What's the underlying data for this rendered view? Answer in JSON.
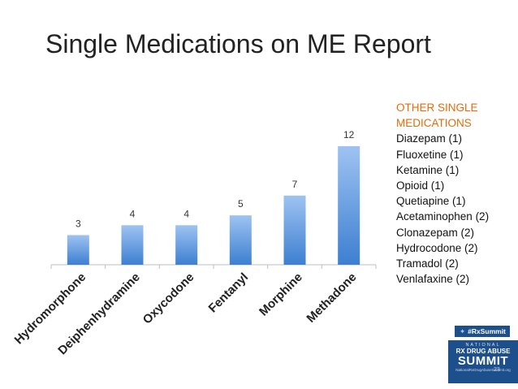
{
  "title": "Single Medications on ME Report",
  "side_panel": {
    "heading_line1": "OTHER SINGLE",
    "heading_line2": "MEDICATIONS",
    "items": [
      "Diazepam (1)",
      "Fluoxetine (1)",
      "Ketamine (1)",
      "Opioid (1)",
      "Quetiapine (1)",
      "Acetaminophen (2)",
      "Clonazepam (2)",
      "Hydrocodone (2)",
      "Tramadol (2)",
      "Venlafaxine (2)"
    ]
  },
  "badge": {
    "hashtag": "#RxSummit",
    "line1": "NATIONAL",
    "line2": "RX DRUG ABUSE",
    "line3": "SUMMIT",
    "line4": "NationalRxDrugAbuseSummit.org",
    "slide_number": "23"
  },
  "colors": {
    "heading": "#e46c0a",
    "bar_top": "#9ec3f2",
    "bar_bottom": "#3d7fd0",
    "axis": "#bfbfbf",
    "badge_blue": "#1d4f8c"
  },
  "chart_data": {
    "type": "bar",
    "categories": [
      "Hydromorphone",
      "Deiphenhydramine",
      "Oxycodone",
      "Fentanyl",
      "Morphine",
      "Methadone"
    ],
    "values": [
      3,
      4,
      4,
      5,
      7,
      12
    ],
    "title": "",
    "xlabel": "",
    "ylabel": "",
    "ylim": [
      0,
      12
    ],
    "data_labels": true,
    "grid": false
  }
}
